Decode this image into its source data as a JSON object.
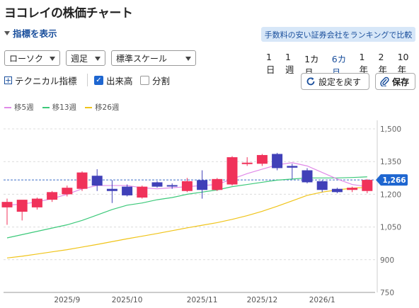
{
  "title": "ヨコレイの株価チャート",
  "indicator_toggle": "指標を表示",
  "compare_button": "手数料の安い証券会社をランキングで比較",
  "selects": {
    "chart_type": "ローソク",
    "period": "週足",
    "scale": "標準スケール"
  },
  "ranges": [
    "1日",
    "1週",
    "1カ月",
    "6カ月",
    "1年",
    "2年",
    "10年"
  ],
  "active_range": "6カ月",
  "options": {
    "technical": "テクニカル指標",
    "volume": "出来高",
    "split": "分割"
  },
  "buttons": {
    "reset": "設定を戻す",
    "save": "保存"
  },
  "legend": [
    {
      "label": "移5週",
      "color": "#e08ae8"
    },
    {
      "label": "移13週",
      "color": "#3cc97a"
    },
    {
      "label": "移26週",
      "color": "#f0c419"
    }
  ],
  "colors": {
    "up": "#f0325a",
    "down": "#4040b8",
    "price_badge": "#1e66d0",
    "text_blue": "#1a4f9c"
  },
  "chart_data": {
    "type": "candlestick",
    "y_ticks": [
      "1,500",
      "1,350",
      "1,200",
      "1,050",
      "900",
      "750"
    ],
    "y_tick_values": [
      1500,
      1350,
      1200,
      1050,
      900,
      750
    ],
    "ylim": [
      750,
      1500
    ],
    "x_labels": [
      {
        "label": "2025/9",
        "index": 4
      },
      {
        "label": "2025/10",
        "index": 8
      },
      {
        "label": "2025/11",
        "index": 13
      },
      {
        "label": "2025/12",
        "index": 17
      },
      {
        "label": "2026/1",
        "index": 21
      }
    ],
    "current_price": 1266,
    "current_price_label": "1,266",
    "candles": [
      {
        "o": 1140,
        "h": 1180,
        "l": 1060,
        "c": 1165
      },
      {
        "o": 1120,
        "h": 1170,
        "l": 1080,
        "c": 1175
      },
      {
        "o": 1140,
        "h": 1185,
        "l": 1130,
        "c": 1180
      },
      {
        "o": 1175,
        "h": 1215,
        "l": 1165,
        "c": 1210
      },
      {
        "o": 1200,
        "h": 1240,
        "l": 1190,
        "c": 1230
      },
      {
        "o": 1225,
        "h": 1305,
        "l": 1215,
        "c": 1300
      },
      {
        "o": 1285,
        "h": 1315,
        "l": 1215,
        "c": 1240
      },
      {
        "o": 1225,
        "h": 1265,
        "l": 1160,
        "c": 1215
      },
      {
        "o": 1235,
        "h": 1245,
        "l": 1190,
        "c": 1195
      },
      {
        "o": 1185,
        "h": 1240,
        "l": 1180,
        "c": 1235
      },
      {
        "o": 1255,
        "h": 1260,
        "l": 1230,
        "c": 1235
      },
      {
        "o": 1242,
        "h": 1250,
        "l": 1225,
        "c": 1238
      },
      {
        "o": 1215,
        "h": 1275,
        "l": 1210,
        "c": 1260
      },
      {
        "o": 1265,
        "h": 1310,
        "l": 1180,
        "c": 1220
      },
      {
        "o": 1220,
        "h": 1275,
        "l": 1215,
        "c": 1270
      },
      {
        "o": 1245,
        "h": 1375,
        "l": 1240,
        "c": 1370
      },
      {
        "o": 1340,
        "h": 1370,
        "l": 1330,
        "c": 1345
      },
      {
        "o": 1340,
        "h": 1385,
        "l": 1330,
        "c": 1380
      },
      {
        "o": 1385,
        "h": 1390,
        "l": 1310,
        "c": 1320
      },
      {
        "o": 1330,
        "h": 1340,
        "l": 1270,
        "c": 1322
      },
      {
        "o": 1310,
        "h": 1320,
        "l": 1250,
        "c": 1255
      },
      {
        "o": 1260,
        "h": 1265,
        "l": 1210,
        "c": 1220
      },
      {
        "o": 1225,
        "h": 1230,
        "l": 1205,
        "c": 1210
      },
      {
        "o": 1220,
        "h": 1235,
        "l": 1210,
        "c": 1230
      },
      {
        "o": 1215,
        "h": 1270,
        "l": 1205,
        "c": 1266
      }
    ],
    "ma5": [
      1150,
      1155,
      1165,
      1180,
      1200,
      1225,
      1240,
      1240,
      1240,
      1230,
      1225,
      1230,
      1235,
      1240,
      1245,
      1270,
      1295,
      1315,
      1335,
      1345,
      1330,
      1300,
      1270,
      1245,
      1235
    ],
    "ma13": [
      1000,
      1015,
      1030,
      1045,
      1060,
      1080,
      1105,
      1130,
      1150,
      1160,
      1175,
      1185,
      1200,
      1210,
      1220,
      1235,
      1245,
      1255,
      1265,
      1270,
      1275,
      1275,
      1275,
      1277,
      1280
    ],
    "ma26": [
      908,
      916,
      926,
      936,
      946,
      958,
      970,
      983,
      996,
      1008,
      1020,
      1033,
      1046,
      1058,
      1070,
      1085,
      1102,
      1122,
      1145,
      1170,
      1195,
      1210,
      1220,
      1228,
      1232
    ]
  }
}
